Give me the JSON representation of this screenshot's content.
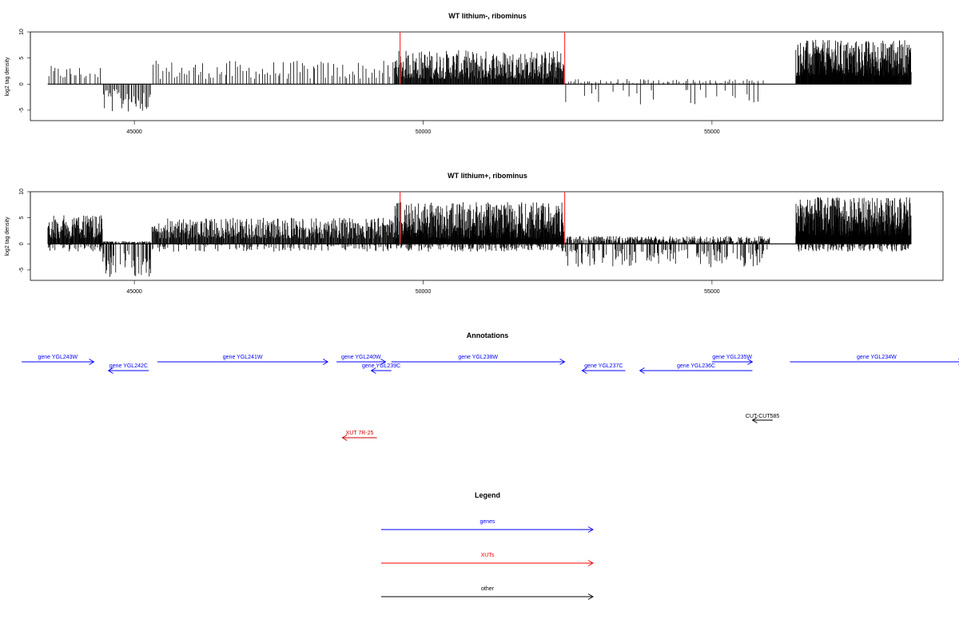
{
  "chart_data": [
    {
      "type": "bar",
      "title": "WT lithium-, ribominus",
      "ylabel": "log2 tag density",
      "xlim": [
        43200,
        59000
      ],
      "ylim": [
        -7,
        10
      ],
      "xticks": [
        45000,
        50000,
        55000
      ],
      "yticks": [
        10,
        5,
        0,
        -5
      ],
      "ytick_labels": [
        "10",
        "5",
        "0",
        "-5"
      ],
      "markers": [
        49600,
        52450
      ],
      "marker_color": "#ff4040",
      "bar_color": "#000000",
      "regions": [
        {
          "start": 43500,
          "end": 44100,
          "density": 0.35,
          "pmin": 1,
          "pmax": 3.5,
          "nmin": 0,
          "nmax": 0
        },
        {
          "start": 44100,
          "end": 44450,
          "density": 0.25,
          "pmin": 1,
          "pmax": 3.5,
          "nmin": 0,
          "nmax": 0
        },
        {
          "start": 44450,
          "end": 45300,
          "density": 0.6,
          "pmin": 0,
          "pmax": 0,
          "nmin": 1,
          "nmax": 5.5
        },
        {
          "start": 45300,
          "end": 49500,
          "density": 0.3,
          "pmin": 1,
          "pmax": 4.5,
          "nmin": 0,
          "nmax": 0
        },
        {
          "start": 49500,
          "end": 52450,
          "density": 1.6,
          "pmin": 1,
          "pmax": 6.5,
          "nmin": 0,
          "nmax": 0
        },
        {
          "start": 52450,
          "end": 55900,
          "density": 0.3,
          "pmin": 0,
          "pmax": 1,
          "nmin": 1,
          "nmax": 4
        },
        {
          "start": 56450,
          "end": 58450,
          "density": 2.6,
          "pmin": 1.5,
          "pmax": 8.5,
          "nmin": 0,
          "nmax": 0
        }
      ]
    },
    {
      "type": "bar",
      "title": "WT lithium+, ribominus",
      "ylabel": "log2 tag density",
      "xlim": [
        43200,
        59000
      ],
      "ylim": [
        -7,
        10
      ],
      "xticks": [
        45000,
        50000,
        55000
      ],
      "yticks": [
        10,
        5,
        0,
        -5
      ],
      "ytick_labels": [
        "10",
        "5",
        "0",
        "-5"
      ],
      "markers": [
        49600,
        52450
      ],
      "marker_color": "#ff4040",
      "bar_color": "#000000",
      "regions": [
        {
          "start": 43500,
          "end": 44450,
          "density": 1.8,
          "pmin": 1,
          "pmax": 5.5,
          "nmin": 0,
          "nmax": 1.5
        },
        {
          "start": 44450,
          "end": 45300,
          "density": 1.8,
          "pmin": 0,
          "pmax": 0.5,
          "nmin": 1,
          "nmax": 6.5
        },
        {
          "start": 45300,
          "end": 49500,
          "density": 1.4,
          "pmin": 1,
          "pmax": 5,
          "nmin": 0,
          "nmax": 1.5
        },
        {
          "start": 49500,
          "end": 52450,
          "density": 2.4,
          "pmin": 1,
          "pmax": 8,
          "nmin": 0,
          "nmax": 1.5
        },
        {
          "start": 52450,
          "end": 56000,
          "density": 1.5,
          "pmin": 0,
          "pmax": 1.5,
          "nmin": 1,
          "nmax": 4.5
        },
        {
          "start": 56450,
          "end": 58450,
          "density": 2.8,
          "pmin": 1.5,
          "pmax": 9,
          "nmin": 0,
          "nmax": 1.5
        }
      ]
    }
  ],
  "annotations": {
    "title": "Annotations",
    "items": [
      {
        "label": "gene YGL243W",
        "color": "#0000ff",
        "dir": "right",
        "start": 43050,
        "end": 44300,
        "row": 0
      },
      {
        "label": "gene YGL242C",
        "color": "#0000ff",
        "dir": "left",
        "start": 44550,
        "end": 45250,
        "row": 1
      },
      {
        "label": "gene YGL241W",
        "color": "#0000ff",
        "dir": "right",
        "start": 45400,
        "end": 48350,
        "row": 0
      },
      {
        "label": "gene YGL240W",
        "color": "#0000ff",
        "dir": "right",
        "start": 48500,
        "end": 49350,
        "row": 0
      },
      {
        "label": "gene YGL239C",
        "color": "#0000ff",
        "dir": "left",
        "start": 49100,
        "end": 49450,
        "row": 1
      },
      {
        "label": "gene YGL238W",
        "color": "#0000ff",
        "dir": "right",
        "start": 49450,
        "end": 52450,
        "row": 0
      },
      {
        "label": "gene YGL237C",
        "color": "#0000ff",
        "dir": "left",
        "start": 52750,
        "end": 53500,
        "row": 1
      },
      {
        "label": "gene YGL236C",
        "color": "#0000ff",
        "dir": "left",
        "start": 53750,
        "end": 55700,
        "row": 1
      },
      {
        "label": "gene YGL235W",
        "color": "#0000ff",
        "dir": "right",
        "start": 55000,
        "end": 55700,
        "row": 0
      },
      {
        "label": "gene YGL234W",
        "color": "#0000ff",
        "dir": "right",
        "start": 56350,
        "end": 59350,
        "row": 0
      },
      {
        "label": "CUT-CUT585",
        "color": "#000000",
        "dir": "left",
        "start": 55700,
        "end": 56050,
        "row": 2
      },
      {
        "label": "XUT 7R-25",
        "color": "#cc0000",
        "dir": "left",
        "start": 48600,
        "end": 49200,
        "row": 3
      }
    ]
  },
  "legend": {
    "title": "Legend",
    "items": [
      {
        "label": "genes",
        "color": "#0000ff"
      },
      {
        "label": "XUTs",
        "color": "#ff0000"
      },
      {
        "label": "other",
        "color": "#000000"
      }
    ]
  }
}
